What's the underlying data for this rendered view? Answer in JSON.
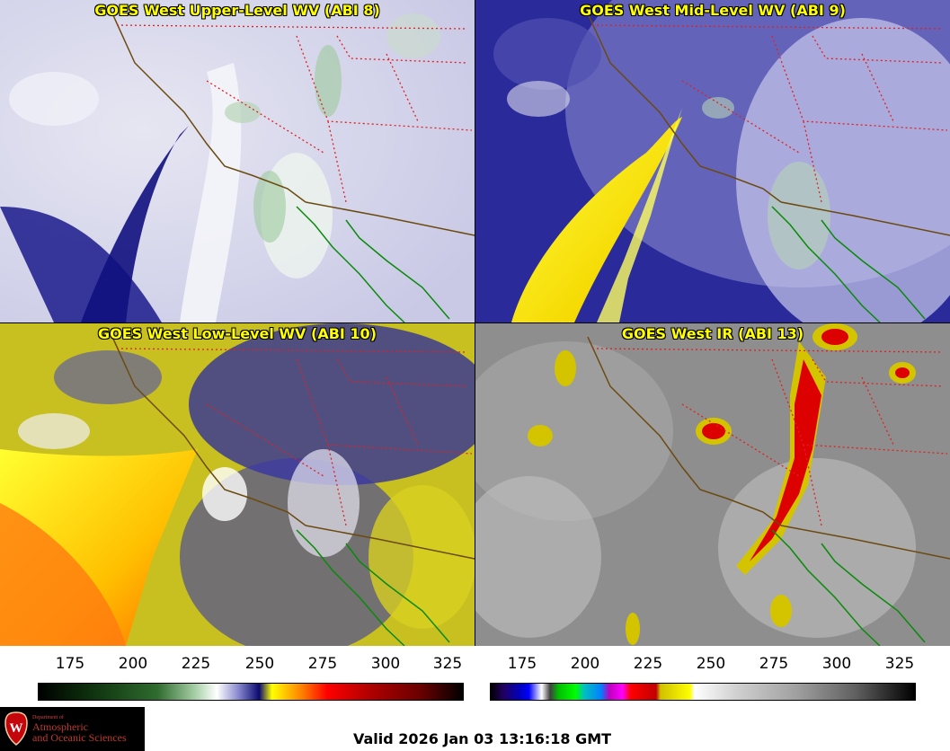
{
  "panels": [
    {
      "title": "GOES West Upper-Level WV (ABI 8)"
    },
    {
      "title": "GOES West Mid-Level WV (ABI 9)"
    },
    {
      "title": "GOES West Low-Level WV (ABI 10)"
    },
    {
      "title": "GOES West IR (ABI 13)"
    }
  ],
  "wv_scale": {
    "ticks": [
      "175",
      "200",
      "225",
      "250",
      "275",
      "300",
      "325"
    ],
    "colors": [
      "#000000",
      "#0a2a0a",
      "#2f6b2f",
      "#9cc99c",
      "#ffffff",
      "#1a1a8c",
      "#ffff00",
      "#ff8000",
      "#ff0000",
      "#8b0000",
      "#000000"
    ]
  },
  "ir_scale": {
    "ticks": [
      "175",
      "200",
      "225",
      "250",
      "275",
      "300",
      "325"
    ]
  },
  "logo": {
    "line1": "Department of",
    "line2": "Atmospheric",
    "line3": "and Oceanic Sciences",
    "crest": "W"
  },
  "footer": {
    "valid_text": "Valid 2026 Jan 03 13:16:18 GMT"
  }
}
